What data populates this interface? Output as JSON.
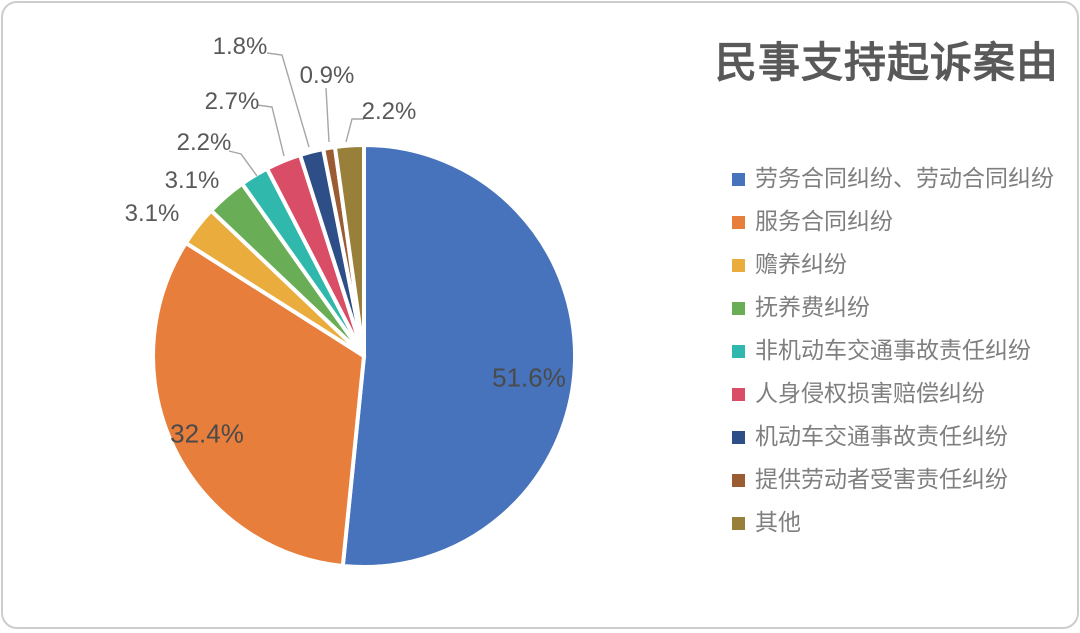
{
  "title": "民事支持起诉案由",
  "chart_data": {
    "type": "pie",
    "title": "民事支持起诉案由",
    "legend_position": "right",
    "start_angle_deg": 0,
    "direction": "clockwise",
    "data_labels": "percent",
    "slices": [
      {
        "label": "劳务合同纠纷、劳动合同纠纷",
        "value": 51.6,
        "display": "51.6%",
        "color": "#4673BB",
        "label_placement": "inside"
      },
      {
        "label": "服务合同纠纷",
        "value": 32.4,
        "display": "32.4%",
        "color": "#E87E3C",
        "label_placement": "inside"
      },
      {
        "label": "赡养纠纷",
        "value": 3.1,
        "display": "3.1%",
        "color": "#E9AC3D",
        "label_placement": "outside"
      },
      {
        "label": "抚养费纠纷",
        "value": 3.1,
        "display": "3.1%",
        "color": "#69AE56",
        "label_placement": "outside"
      },
      {
        "label": "非机动车交通事故责任纠纷",
        "value": 2.2,
        "display": "2.2%",
        "color": "#31B8AC",
        "label_placement": "outside"
      },
      {
        "label": "人身侵权损害赔偿纠纷",
        "value": 2.7,
        "display": "2.7%",
        "color": "#D94E66",
        "label_placement": "outside"
      },
      {
        "label": "机动车交通事故责任纠纷",
        "value": 1.8,
        "display": "1.8%",
        "color": "#2E4E87",
        "label_placement": "outside"
      },
      {
        "label": "提供劳动者受害责任纠纷",
        "value": 0.9,
        "display": "0.9%",
        "color": "#9B5B33",
        "label_placement": "outside"
      },
      {
        "label": "其他",
        "value": 2.2,
        "display": "2.2%",
        "color": "#98803A",
        "label_placement": "outside"
      }
    ]
  },
  "colors": {
    "background": "#ffffff",
    "card_border": "#cdcdcd",
    "title_text": "#595959",
    "inside_label_text": "#4a4a4a",
    "outside_label_text": "#595959",
    "legend_text": "#7f7f7f",
    "leader_line": "#a6a6a6",
    "slice_gap": "#ffffff"
  }
}
